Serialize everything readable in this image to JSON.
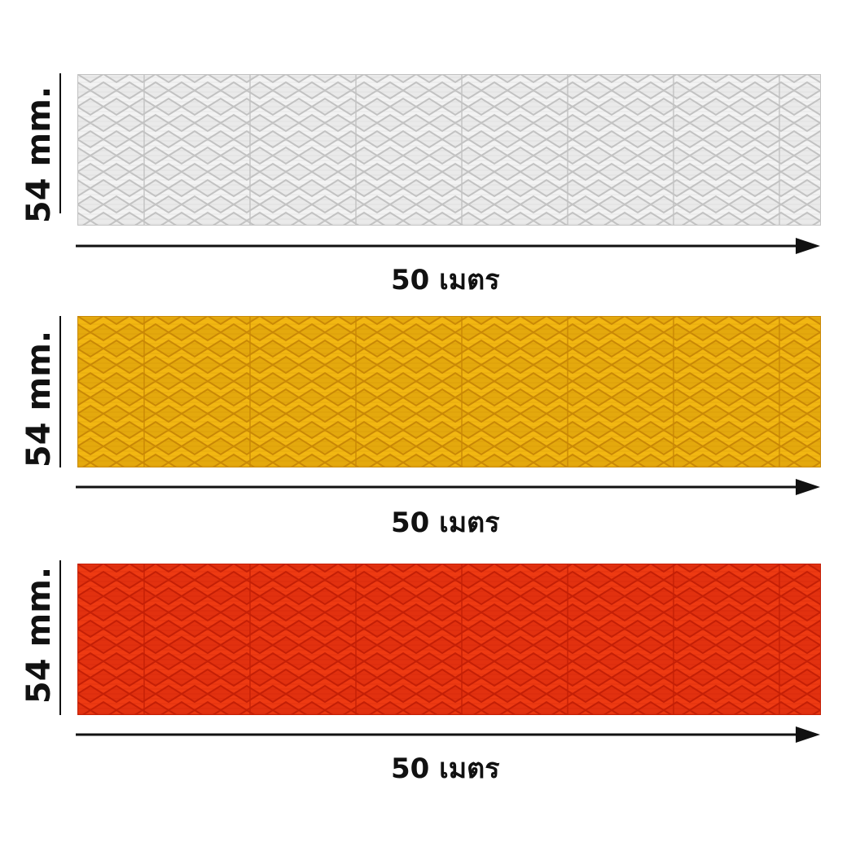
{
  "strips": [
    {
      "color_name": "white",
      "height_label": "54 mm.",
      "length_label": "50 เมตร",
      "base_color": "#f3f3f3",
      "grid_color": "#c2c2c2",
      "cell_color": "#e2e2e2"
    },
    {
      "color_name": "yellow",
      "height_label": "54 mm.",
      "length_label": "50 เมตร",
      "base_color": "#f2b712",
      "grid_color": "#c98806",
      "cell_color": "#d99f0a"
    },
    {
      "color_name": "red",
      "height_label": "54 mm.",
      "length_label": "50 เมตร",
      "base_color": "#ee3a12",
      "grid_color": "#c41f06",
      "cell_color": "#d92a0c"
    }
  ]
}
